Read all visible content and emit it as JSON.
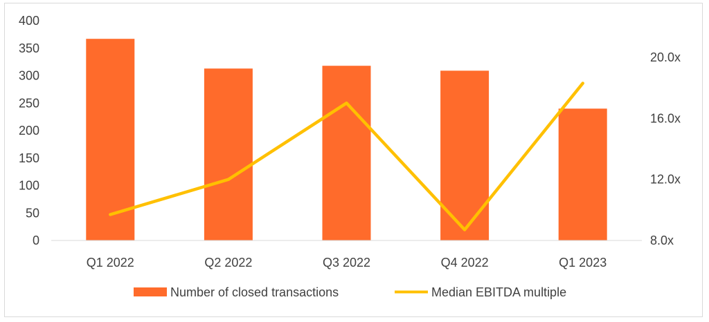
{
  "chart_data": {
    "type": "bar",
    "categories": [
      "Q1 2022",
      "Q2 2022",
      "Q3 2022",
      "Q4 2022",
      "Q1 2023"
    ],
    "series": [
      {
        "name": "Number of closed transactions",
        "type": "bar",
        "axis": "left",
        "color": "#FF6B2B",
        "values": [
          367,
          313,
          318,
          309,
          240
        ]
      },
      {
        "name": "Median EBITDA multiple",
        "type": "line",
        "axis": "right",
        "color": "#FFC000",
        "values": [
          9.7,
          12.0,
          17.0,
          8.7,
          18.3
        ]
      }
    ],
    "y_left": {
      "min": 0,
      "max": 400,
      "ticks": [
        "0",
        "50",
        "100",
        "150",
        "200",
        "250",
        "300",
        "350",
        "400"
      ]
    },
    "y_right": {
      "min": 8.0,
      "max": 22.4,
      "tick_values": [
        8,
        12,
        16,
        20
      ],
      "ticks": [
        "8.0x",
        "12.0x",
        "16.0x",
        "20.0x"
      ]
    },
    "grid": false,
    "legend_position": "bottom",
    "legend": [
      "Number of closed transactions",
      "Median EBITDA multiple"
    ]
  }
}
